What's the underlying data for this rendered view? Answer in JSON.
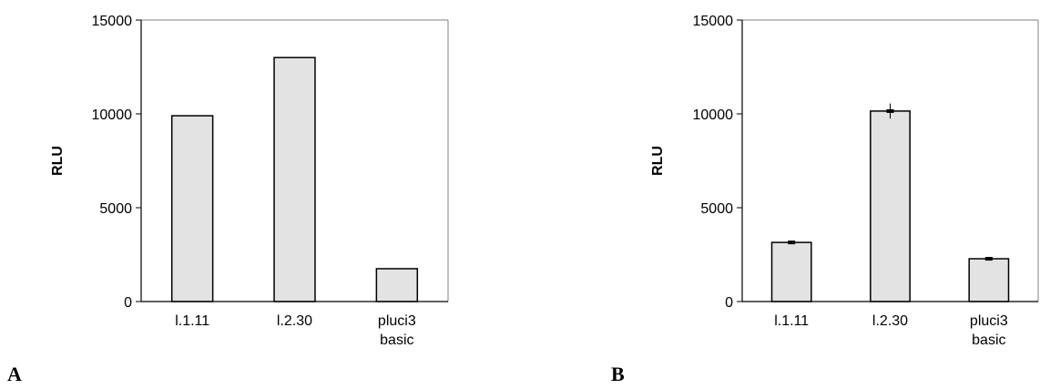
{
  "chart_data": [
    {
      "type": "bar",
      "panel_label": "A",
      "categories": [
        [
          "l.1.11"
        ],
        [
          "l.2.30"
        ],
        [
          "pluci3",
          "basic"
        ]
      ],
      "values": [
        9900,
        13000,
        1750
      ],
      "error": null,
      "ylabel": "RLU",
      "xlabel": "",
      "title": "",
      "ylim": [
        0,
        15000
      ],
      "yticks": [
        0,
        5000,
        10000,
        15000
      ],
      "grid": false,
      "legend": "none",
      "bar_color": "#e3e3e3",
      "edge_color": "#000000"
    },
    {
      "type": "bar",
      "panel_label": "B",
      "categories": [
        [
          "l.1.11"
        ],
        [
          "l.2.30"
        ],
        [
          "pluci3",
          "basic"
        ]
      ],
      "values": [
        3150,
        10150,
        2280
      ],
      "error": [
        80,
        400,
        80
      ],
      "ylabel": "RLU",
      "xlabel": "",
      "title": "",
      "ylim": [
        0,
        15000
      ],
      "yticks": [
        0,
        5000,
        10000,
        15000
      ],
      "grid": false,
      "legend": "none",
      "bar_color": "#e3e3e3",
      "edge_color": "#000000"
    }
  ]
}
